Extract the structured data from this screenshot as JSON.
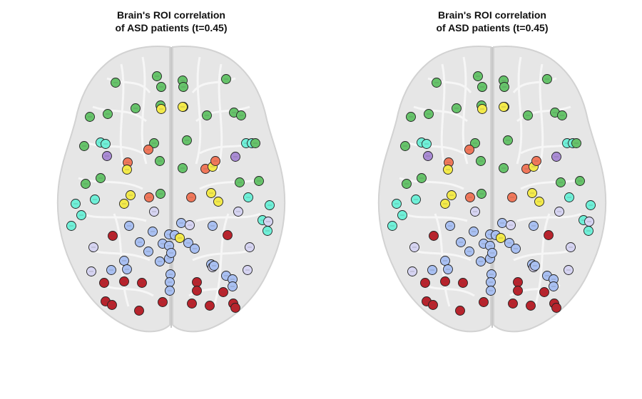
{
  "panels": [
    {
      "title_line1": "Brain's ROI correlation",
      "title_line2": "of ASD patients (t=0.45)"
    },
    {
      "title_line1": "Brain's ROI correlation",
      "title_line2": "of ASD patients (t=0.45)"
    }
  ],
  "colors": {
    "green": "#66c36a",
    "yellow": "#f3ea4a",
    "orange": "#f0775a",
    "purple": "#a98bd4",
    "cyan": "#6ff0d8",
    "blue": "#a9c0f2",
    "lavender": "#d6d4f2",
    "red": "#b9232c",
    "outline": "#222222"
  }
}
